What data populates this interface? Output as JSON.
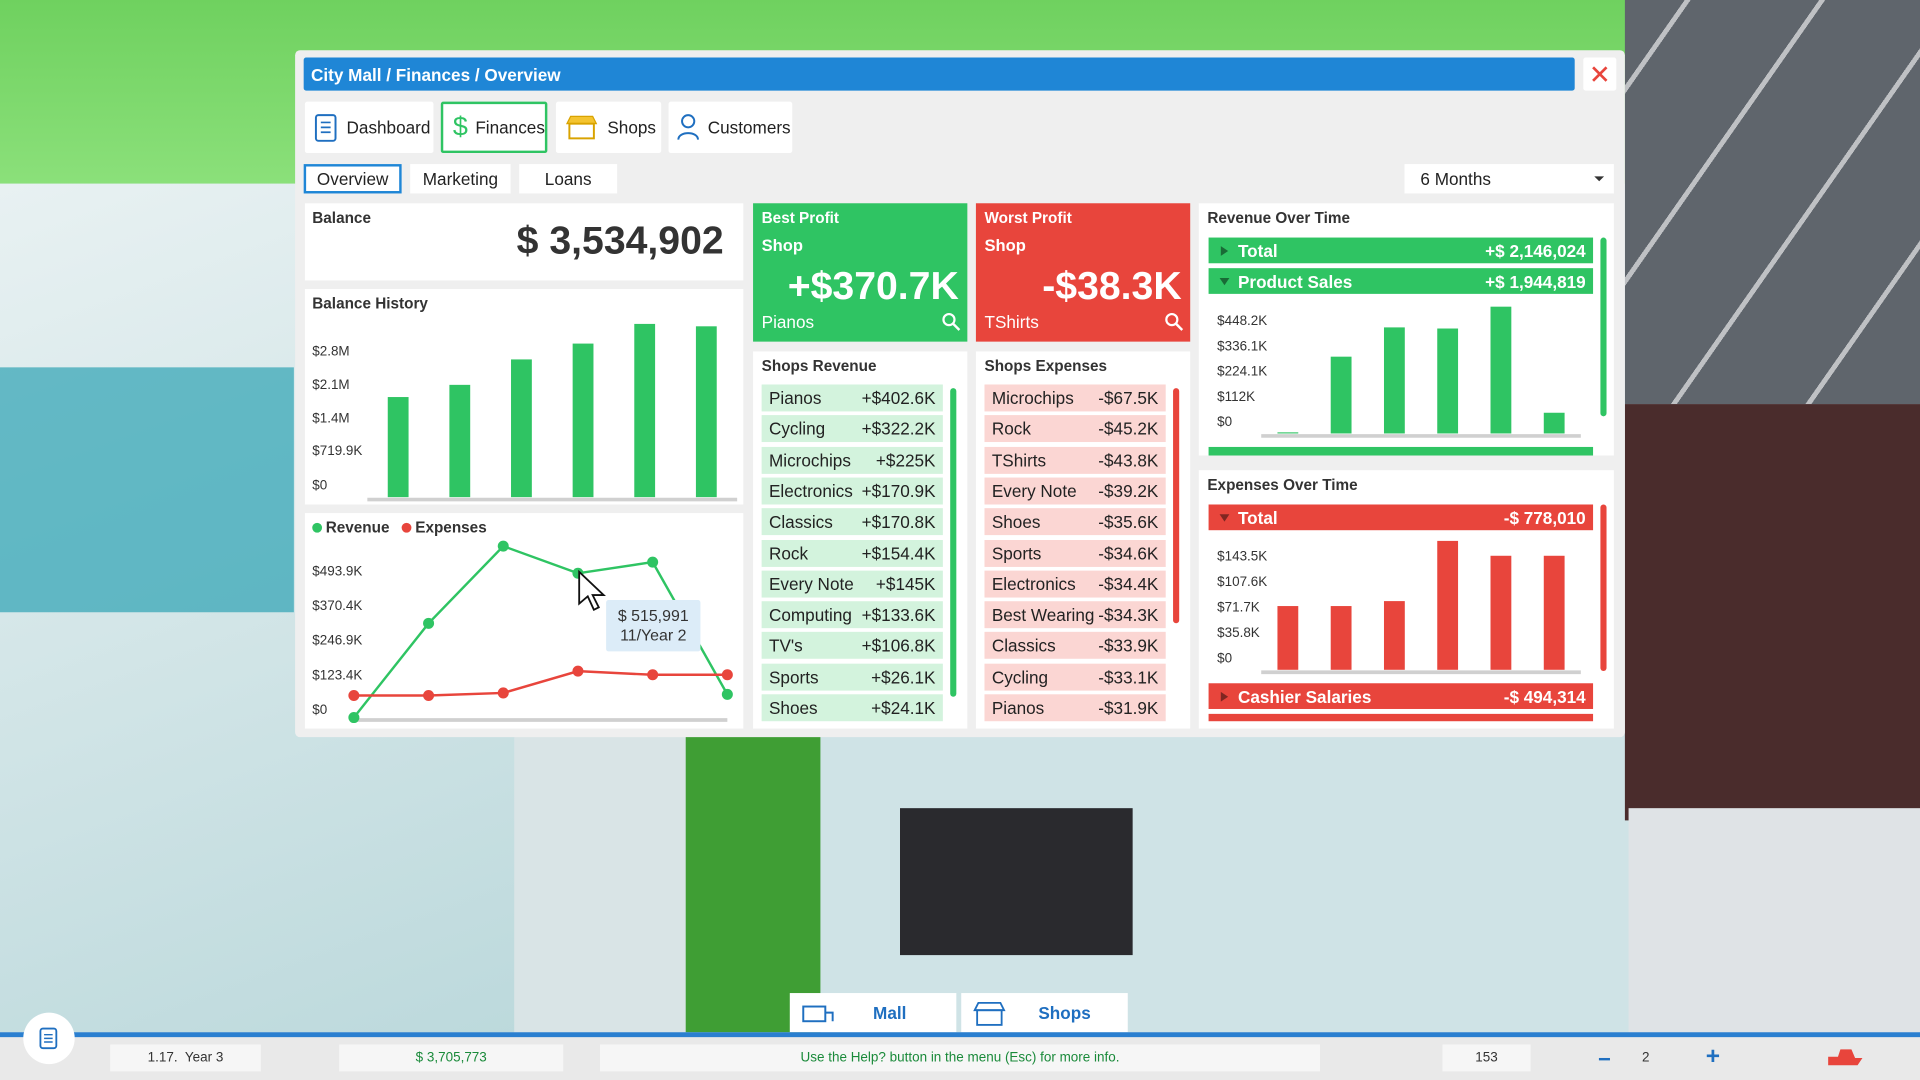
{
  "breadcrumb": "City Mall / Finances / Overview",
  "tabs": [
    "Dashboard",
    "Finances",
    "Shops",
    "Customers"
  ],
  "subtabs": [
    "Overview",
    "Marketing",
    "Loans"
  ],
  "period": "6 Months",
  "balance": {
    "label": "Balance",
    "value": "$ 3,534,902"
  },
  "balance_history": {
    "type": "bar",
    "title": "Balance History",
    "values": [
      2086000,
      2340000,
      2870000,
      3200000,
      3610000,
      3560000
    ],
    "color": "#2fc463",
    "ylim": [
      0,
      3700000
    ],
    "yticks": [
      {
        "value": 0,
        "label": "$0"
      },
      {
        "value": 719900,
        "label": "$719.9K"
      },
      {
        "value": 1400000,
        "label": "$1.4M"
      },
      {
        "value": 2100000,
        "label": "$2.1M"
      },
      {
        "value": 2800000,
        "label": "$2.8M"
      }
    ]
  },
  "cash_flow": {
    "type": "line",
    "series": [
      {
        "name": "Revenue",
        "color": "#2fc463",
        "values": [
          0,
          337000,
          613000,
          515991,
          556000,
          83000
        ]
      },
      {
        "name": "Expenses",
        "color": "#e8453c",
        "values": [
          79000,
          79000,
          88000,
          166000,
          153000,
          153000
        ]
      }
    ],
    "ylim": [
      0,
      600000
    ],
    "yticks": [
      {
        "value": 0,
        "label": "$0"
      },
      {
        "value": 123400,
        "label": "$123.4K"
      },
      {
        "value": 246900,
        "label": "$246.9K"
      },
      {
        "value": 370400,
        "label": "$370.4K"
      },
      {
        "value": 493900,
        "label": "$493.9K"
      }
    ],
    "tooltip": {
      "value": "$ 515,991",
      "date": "11/Year 2"
    }
  },
  "best_profit": {
    "title": "Best Profit",
    "subtitle": "Shop",
    "value": "+$370.7K",
    "shop": "Pianos"
  },
  "worst_profit": {
    "title": "Worst Profit",
    "subtitle": "Shop",
    "value": "-$38.3K",
    "shop": "TShirts"
  },
  "shops_revenue": {
    "title": "Shops Revenue",
    "rows": [
      [
        "Pianos",
        "+$402.6K"
      ],
      [
        "Cycling",
        "+$322.2K"
      ],
      [
        "Microchips",
        "+$225K"
      ],
      [
        "Electronics",
        "+$170.9K"
      ],
      [
        "Classics",
        "+$170.8K"
      ],
      [
        "Rock",
        "+$154.4K"
      ],
      [
        "Every Note",
        "+$145K"
      ],
      [
        "Computing",
        "+$133.6K"
      ],
      [
        "TV's",
        "+$106.8K"
      ],
      [
        "Sports",
        "+$26.1K"
      ],
      [
        "Shoes",
        "+$24.1K"
      ]
    ]
  },
  "shops_expenses": {
    "title": "Shops Expenses",
    "rows": [
      [
        "Microchips",
        "-$67.5K"
      ],
      [
        "Rock",
        "-$45.2K"
      ],
      [
        "TShirts",
        "-$43.8K"
      ],
      [
        "Every Note",
        "-$39.2K"
      ],
      [
        "Shoes",
        "-$35.6K"
      ],
      [
        "Sports",
        "-$34.6K"
      ],
      [
        "Electronics",
        "-$34.4K"
      ],
      [
        "Best Wearing",
        "-$34.3K"
      ],
      [
        "Classics",
        "-$33.9K"
      ],
      [
        "Cycling",
        "-$33.1K"
      ],
      [
        "Pianos",
        "-$31.9K"
      ]
    ]
  },
  "revenue_over_time": {
    "title": "Revenue Over Time",
    "rows": [
      [
        "Total",
        "+$ 2,146,024"
      ],
      [
        "Product Sales",
        "+$ 1,944,819"
      ]
    ],
    "chart": {
      "type": "bar",
      "values": [
        5000,
        341000,
        471000,
        466000,
        563000,
        92000
      ],
      "color": "#2fc463",
      "ylim": [
        0,
        560000
      ],
      "yticks": [
        {
          "value": 0,
          "label": "$0"
        },
        {
          "value": 112000,
          "label": "$112K"
        },
        {
          "value": 224100,
          "label": "$224.1K"
        },
        {
          "value": 336100,
          "label": "$336.1K"
        },
        {
          "value": 448200,
          "label": "$448.2K"
        }
      ]
    }
  },
  "expenses_over_time": {
    "title": "Expenses Over Time",
    "rows": [
      [
        "Total",
        "-$ 778,010"
      ]
    ],
    "chart": {
      "type": "bar",
      "values": [
        90000,
        90000,
        97000,
        182000,
        161000,
        161000
      ],
      "color": "#e8453c",
      "ylim": [
        0,
        185000
      ],
      "yticks": [
        {
          "value": 0,
          "label": "$0"
        },
        {
          "value": 35800,
          "label": "$35.8K"
        },
        {
          "value": 71700,
          "label": "$71.7K"
        },
        {
          "value": 107600,
          "label": "$107.6K"
        },
        {
          "value": 143500,
          "label": "$143.5K"
        }
      ]
    },
    "footer_rows": [
      [
        "Cashier Salaries",
        "-$ 494,314"
      ]
    ]
  },
  "bottom_buttons": [
    "Mall",
    "Shops"
  ],
  "status": {
    "date": "1.17.  Year 3",
    "money": "$ 3,705,773",
    "hint": "Use the Help? button in the menu (Esc) for more info.",
    "visitors": "153",
    "speed": "2"
  }
}
